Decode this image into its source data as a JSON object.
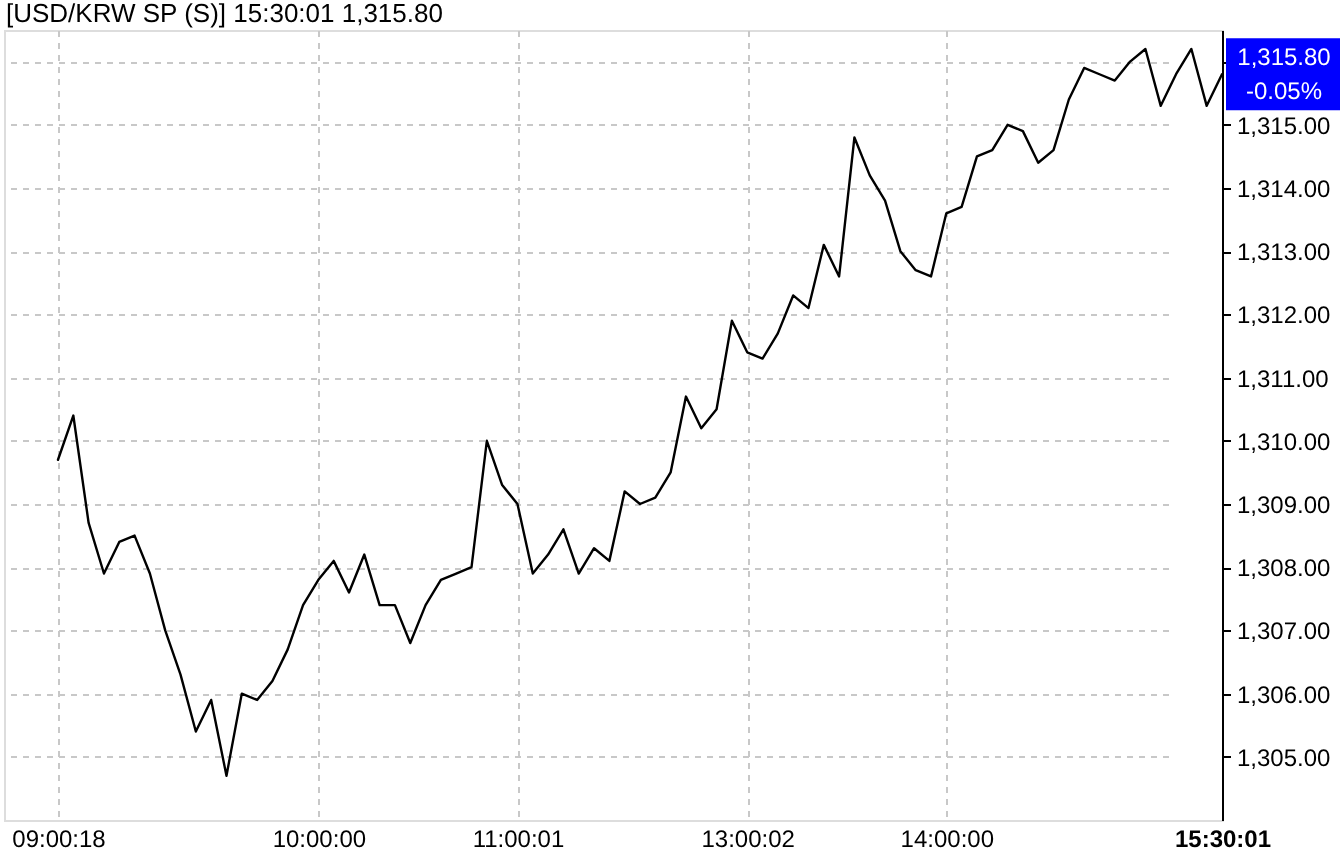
{
  "chart_data": {
    "type": "line",
    "title": "[USD/KRW SP (S)] 15:30:01 1,315.80",
    "categories": [
      "09:00:18",
      null,
      null,
      null,
      null,
      null,
      null,
      null,
      null,
      null,
      null,
      null,
      null,
      null,
      null,
      null,
      null,
      "10:00:00",
      null,
      null,
      null,
      null,
      null,
      null,
      null,
      null,
      null,
      null,
      null,
      null,
      "11:00:01",
      null,
      null,
      null,
      null,
      null,
      null,
      null,
      null,
      null,
      null,
      null,
      null,
      null,
      null,
      "13:00:02",
      null,
      null,
      null,
      null,
      null,
      null,
      null,
      null,
      null,
      null,
      null,
      null,
      "14:00:00",
      null,
      null,
      null,
      null,
      null,
      null,
      null,
      null,
      null,
      null,
      null,
      null,
      null,
      null,
      null,
      null,
      null,
      "15:30:01"
    ],
    "values": [
      1309.7,
      1310.4,
      1308.7,
      1307.9,
      1308.4,
      1308.5,
      1307.9,
      1307.0,
      1306.3,
      1305.4,
      1305.9,
      1304.7,
      1306.0,
      1305.9,
      1306.2,
      1306.7,
      1307.4,
      1307.8,
      1308.1,
      1307.6,
      1308.2,
      1307.4,
      1307.4,
      1306.8,
      1307.4,
      1307.8,
      1307.9,
      1308.0,
      1310.0,
      1309.3,
      1309.0,
      1307.9,
      1308.2,
      1308.6,
      1307.9,
      1308.3,
      1308.1,
      1309.2,
      1309.0,
      1309.1,
      1309.5,
      1310.7,
      1310.2,
      1310.5,
      1311.9,
      1311.4,
      1311.3,
      1311.7,
      1312.3,
      1312.1,
      1313.1,
      1312.6,
      1314.8,
      1314.2,
      1313.8,
      1313.0,
      1312.7,
      1312.6,
      1313.6,
      1313.7,
      1314.5,
      1314.6,
      1315.0,
      1314.9,
      1314.4,
      1314.6,
      1315.4,
      1315.9,
      1315.8,
      1315.7,
      1316.0,
      1316.2,
      1315.3,
      1315.8,
      1316.2,
      1315.3,
      1315.8
    ],
    "value_labels": [
      null,
      null,
      null,
      null,
      null,
      null,
      null,
      null,
      null,
      null,
      null,
      null,
      null,
      null,
      null,
      null,
      null,
      null,
      null,
      null,
      null,
      null,
      null,
      null,
      null,
      null,
      null,
      null,
      null,
      null,
      null,
      null,
      null,
      null,
      null,
      null,
      null,
      null,
      null,
      null,
      null,
      null,
      null,
      null,
      null,
      null,
      null,
      null,
      null,
      null,
      null,
      null,
      null,
      null,
      null,
      null,
      null,
      null,
      null,
      null,
      null,
      null,
      null,
      null,
      null,
      null,
      null,
      null,
      null,
      null,
      null,
      null,
      null,
      null,
      null,
      null,
      "1,315.80"
    ],
    "color": "#000000",
    "ylim": [
      1304,
      1316.5
    ],
    "yticks": [
      {
        "value": 1305,
        "label": "1,305.00"
      },
      {
        "value": 1306,
        "label": "1,306.00"
      },
      {
        "value": 1307,
        "label": "1,307.00"
      },
      {
        "value": 1308,
        "label": "1,308.00"
      },
      {
        "value": 1309,
        "label": "1,309.00"
      },
      {
        "value": 1310,
        "label": "1,310.00"
      },
      {
        "value": 1311,
        "label": "1,311.00"
      },
      {
        "value": 1312,
        "label": "1,312.00"
      },
      {
        "value": 1313,
        "label": "1,313.00"
      },
      {
        "value": 1314,
        "label": "1,314.00"
      },
      {
        "value": 1315,
        "label": "1,315.00"
      },
      {
        "value": 1316,
        "label": null
      }
    ],
    "grid": true,
    "annotations": [
      "-0.05%"
    ]
  }
}
